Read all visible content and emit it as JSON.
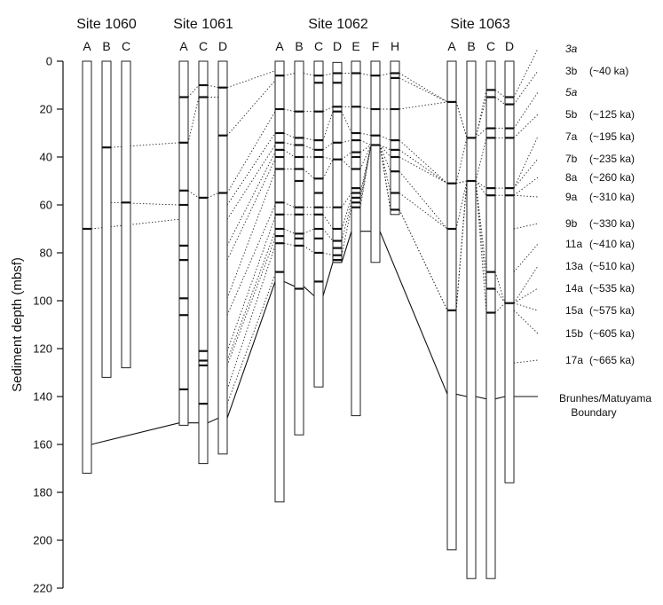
{
  "y_axis": {
    "label": "Sediment depth (mbsf)",
    "min": 0,
    "max": 220,
    "ticks": [
      0,
      20,
      40,
      60,
      80,
      100,
      120,
      140,
      160,
      180,
      200,
      220
    ]
  },
  "sites": [
    {
      "name": "Site 1060",
      "holes": [
        {
          "label": "A",
          "bottom": 172,
          "markers": [
            70
          ]
        },
        {
          "label": "B",
          "bottom": 132,
          "markers": [
            36
          ]
        },
        {
          "label": "C",
          "bottom": 128,
          "markers": [
            59
          ]
        }
      ]
    },
    {
      "name": "Site 1061",
      "holes": [
        {
          "label": "A",
          "bottom": 152,
          "markers": [
            15,
            34,
            54,
            60,
            77,
            83,
            99,
            106,
            137
          ]
        },
        {
          "label": "C",
          "bottom": 168,
          "markers": [
            10,
            15,
            57,
            121,
            125,
            127,
            143
          ]
        },
        {
          "label": "D",
          "bottom": 164,
          "markers": [
            11,
            31,
            55
          ]
        }
      ]
    },
    {
      "name": "Site 1062",
      "holes": [
        {
          "label": "A",
          "bottom": 184,
          "markers": [
            6,
            20,
            30,
            34,
            37,
            40,
            45,
            59,
            64,
            70,
            73,
            76,
            88
          ]
        },
        {
          "label": "B",
          "bottom": 156,
          "markers": [
            21,
            32,
            35,
            40,
            45,
            50,
            61,
            64,
            72,
            74,
            77,
            95
          ]
        },
        {
          "label": "C",
          "bottom": 136,
          "markers": [
            6,
            9,
            21,
            33,
            37,
            40,
            49,
            55,
            61,
            64,
            70,
            74,
            80,
            92
          ]
        },
        {
          "label": "D",
          "bottom": 84,
          "markers": [
            5,
            9,
            19,
            21,
            34,
            41,
            61,
            70,
            75,
            78,
            81,
            83
          ]
        },
        {
          "label": "E",
          "bottom": 148,
          "markers": [
            5,
            19,
            30,
            33,
            38,
            40,
            45,
            53,
            55,
            57,
            59,
            61
          ]
        },
        {
          "label": "F",
          "bottom": 84,
          "markers": [
            6,
            20,
            31,
            35
          ]
        },
        {
          "label": "H",
          "bottom": 64,
          "markers": [
            5,
            7,
            20,
            33,
            37,
            40,
            46,
            55,
            62
          ]
        }
      ]
    },
    {
      "name": "Site 1063",
      "holes": [
        {
          "label": "A",
          "bottom": 204,
          "markers": [
            17,
            51,
            70,
            104
          ]
        },
        {
          "label": "B",
          "bottom": 216,
          "markers": [
            32,
            50
          ]
        },
        {
          "label": "C",
          "bottom": 216,
          "markers": [
            12,
            15,
            28,
            32,
            53,
            56,
            88,
            95,
            105
          ]
        },
        {
          "label": "D",
          "bottom": 176,
          "markers": [
            15,
            18,
            28,
            32,
            53,
            56,
            101
          ]
        }
      ]
    }
  ],
  "stages": [
    {
      "code": "3a",
      "age": "",
      "italic": true
    },
    {
      "code": "3b",
      "age": "(~40 ka)",
      "italic": false
    },
    {
      "code": "5a",
      "age": "",
      "italic": true
    },
    {
      "code": "5b",
      "age": "(~125 ka)",
      "italic": false
    },
    {
      "code": "7a",
      "age": "(~195 ka)",
      "italic": false
    },
    {
      "code": "7b",
      "age": "(~235 ka)",
      "italic": false
    },
    {
      "code": "8a",
      "age": "(~260 ka)",
      "italic": false
    },
    {
      "code": "9a",
      "age": "(~310 ka)",
      "italic": false
    },
    {
      "code": "9b",
      "age": "(~330 ka)",
      "italic": false
    },
    {
      "code": "11a",
      "age": "(~410 ka)",
      "italic": false
    },
    {
      "code": "13a",
      "age": "(~510 ka)",
      "italic": false
    },
    {
      "code": "14a",
      "age": "(~535 ka)",
      "italic": false
    },
    {
      "code": "15a",
      "age": "(~575 ka)",
      "italic": false
    },
    {
      "code": "15b",
      "age": "(~605 ka)",
      "italic": false
    },
    {
      "code": "17a",
      "age": "(~665 ka)",
      "italic": false
    }
  ],
  "brunhes_matuyama": {
    "label_line1": "Brunhes/Matuyama",
    "label_line2": "Boundary",
    "depths": {
      "1060A": 160,
      "1061A": 151,
      "1061C": 151,
      "1061D": 149,
      "1062A": 92,
      "1062B": 94,
      "1062C": 98,
      "1062D": 84,
      "1062E": 71,
      "1062F": 71,
      "1063A": 139,
      "1063B": 140,
      "1063C": 141,
      "1063D": 140
    }
  }
}
